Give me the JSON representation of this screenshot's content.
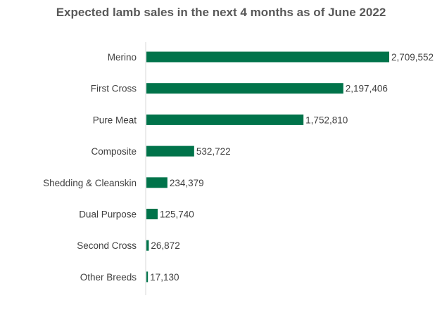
{
  "chart_data": {
    "type": "bar",
    "orientation": "horizontal",
    "title": "Expected lamb sales in the next 4 months as of June 2022",
    "xlabel": "",
    "ylabel": "",
    "categories": [
      "Merino",
      "First Cross",
      "Pure Meat",
      "Composite",
      "Shedding & Cleanskin",
      "Dual Purpose",
      "Second Cross",
      "Other Breeds"
    ],
    "values": [
      2709552,
      2197406,
      1752810,
      532722,
      234379,
      125740,
      26872,
      17130
    ],
    "value_labels": [
      "2,709,552",
      "2,197,406",
      "1,752,810",
      "532,722",
      "234,379",
      "125,740",
      "26,872",
      "17,130"
    ],
    "xlim": [
      0,
      2709552
    ],
    "grid": false,
    "legend": "none",
    "bar_color": "#00734a"
  }
}
